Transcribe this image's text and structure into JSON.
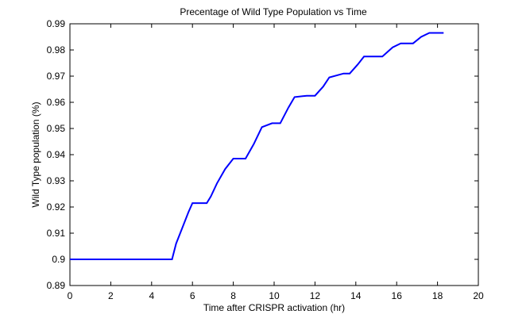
{
  "chart_data": {
    "type": "line",
    "title": "Precentage of Wild Type Population vs Time",
    "xlabel": "Time after CRISPR activation (hr)",
    "ylabel": "Wild Type population (%)",
    "xlim": [
      0,
      20
    ],
    "ylim": [
      0.89,
      0.99
    ],
    "xticks": [
      "0",
      "2",
      "4",
      "6",
      "8",
      "10",
      "12",
      "14",
      "16",
      "18",
      "20"
    ],
    "yticks": [
      "0.89",
      "0.9",
      "0.91",
      "0.92",
      "0.93",
      "0.94",
      "0.95",
      "0.96",
      "0.97",
      "0.98",
      "0.99"
    ],
    "grid": false,
    "legend": "none",
    "colors": {
      "line": "#0000ff",
      "axes": "#000000",
      "background": "#ffffff"
    },
    "series": [
      {
        "x": [
          0,
          2,
          4,
          5.0,
          5.2,
          5.5,
          5.8,
          6.0,
          6.3,
          6.7,
          6.9,
          7.2,
          7.6,
          8.0,
          8.3,
          8.6,
          9.0,
          9.4,
          9.9,
          10.3,
          10.7,
          11.0,
          11.6,
          12.0,
          12.4,
          12.7,
          13.4,
          13.7,
          14.1,
          14.4,
          15.0,
          15.3,
          15.8,
          16.2,
          16.8,
          17.2,
          17.6,
          18.3
        ],
        "y": [
          0.9,
          0.9,
          0.9,
          0.9,
          0.906,
          0.912,
          0.918,
          0.9215,
          0.9215,
          0.9215,
          0.924,
          0.929,
          0.9345,
          0.9385,
          0.9385,
          0.9385,
          0.944,
          0.9505,
          0.952,
          0.952,
          0.958,
          0.962,
          0.9625,
          0.9625,
          0.966,
          0.9695,
          0.971,
          0.971,
          0.9745,
          0.9775,
          0.9775,
          0.9775,
          0.981,
          0.9825,
          0.9825,
          0.985,
          0.9865,
          0.9865
        ]
      }
    ]
  }
}
